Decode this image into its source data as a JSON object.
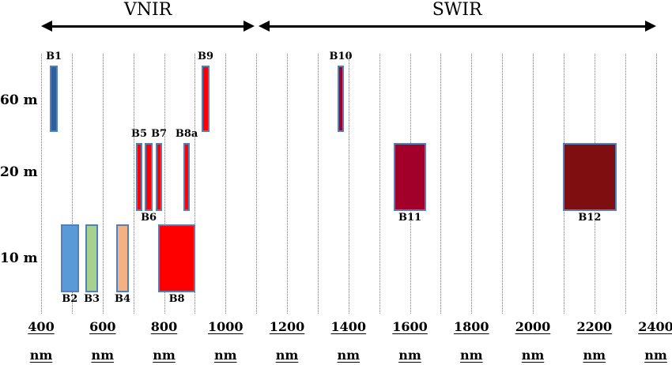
{
  "header": {
    "vnir": "VNIR",
    "swir": "SWIR"
  },
  "axis_unit": "nm",
  "colors": {
    "band_border": "#4f81bd",
    "red": "#fe0000",
    "crimson": "#a2002b",
    "maroon": "#7f0e10",
    "dark_blue": "#305f9e",
    "light_blue": "#5b9bd5",
    "green": "#a9d18e",
    "orange": "#f4b183",
    "gridline": "#7f7f7f",
    "arrow": "#000000"
  },
  "chart_data": {
    "type": "bar",
    "title": "",
    "xlabel": "nm",
    "x_range": [
      400,
      2400
    ],
    "x_ticks": [
      400,
      600,
      800,
      1000,
      1200,
      1400,
      1600,
      1800,
      2000,
      2200,
      2400
    ],
    "gridline_interval_nm": 100,
    "grid": true,
    "regions": [
      {
        "name": "VNIR",
        "nm": [
          400,
          1095
        ]
      },
      {
        "name": "SWIR",
        "nm": [
          1107,
          2400
        ]
      }
    ],
    "resolution_rows": [
      "60 m",
      "20 m",
      "10 m"
    ],
    "bands": [
      {
        "label": "B1",
        "resolution": "60 m",
        "nm": [
          428,
          455
        ],
        "fill": "#305f9e",
        "label_pos": "above"
      },
      {
        "label": "B2",
        "resolution": "10 m",
        "nm": [
          464,
          523
        ],
        "fill": "#5b9bd5",
        "label_pos": "below"
      },
      {
        "label": "B3",
        "resolution": "10 m",
        "nm": [
          544,
          586
        ],
        "fill": "#a9d18e",
        "label_pos": "below"
      },
      {
        "label": "B4",
        "resolution": "10 m",
        "nm": [
          644,
          686
        ],
        "fill": "#f4b183",
        "label_pos": "below"
      },
      {
        "label": "B5",
        "resolution": "20 m",
        "nm": [
          709,
          729
        ],
        "fill": "#fe0000",
        "label_pos": "above"
      },
      {
        "label": "B6",
        "resolution": "20 m",
        "nm": [
          737,
          763
        ],
        "fill": "#fe0000",
        "label_pos": "below"
      },
      {
        "label": "B7",
        "resolution": "20 m",
        "nm": [
          773,
          794
        ],
        "fill": "#fe0000",
        "label_pos": "above"
      },
      {
        "label": "B8",
        "resolution": "10 m",
        "nm": [
          781,
          902
        ],
        "fill": "#fe0000",
        "label_pos": "below"
      },
      {
        "label": "B8a",
        "resolution": "20 m",
        "nm": [
          863,
          884
        ],
        "fill": "#fe0000",
        "label_pos": "above"
      },
      {
        "label": "B9",
        "resolution": "60 m",
        "nm": [
          922,
          948
        ],
        "fill": "#fe0000",
        "label_pos": "above"
      },
      {
        "label": "B10",
        "resolution": "60 m",
        "nm": [
          1365,
          1385
        ],
        "fill": "#a2002b",
        "label_pos": "above"
      },
      {
        "label": "B11",
        "resolution": "20 m",
        "nm": [
          1547,
          1653
        ],
        "fill": "#a2002b",
        "label_pos": "below"
      },
      {
        "label": "B12",
        "resolution": "20 m",
        "nm": [
          2098,
          2272
        ],
        "fill": "#7f0e10",
        "label_pos": "below"
      }
    ]
  }
}
